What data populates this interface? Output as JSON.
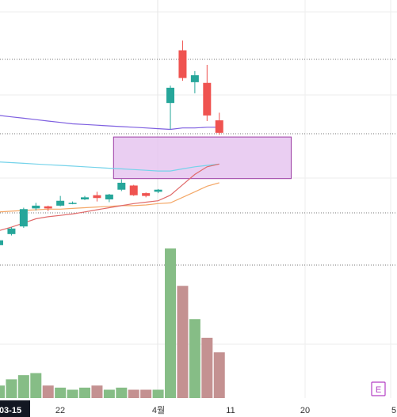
{
  "chart_data": {
    "type": "candlestick",
    "x_tick_labels": [
      "03-15",
      "22",
      "4월",
      "11",
      "20",
      "5"
    ],
    "highlighted_tick": "03-15",
    "candles": [
      {
        "open": 68.3,
        "high": 69.2,
        "low": 67.8,
        "close": 69.0
      },
      {
        "open": 69.9,
        "high": 70.9,
        "low": 69.7,
        "close": 70.7
      },
      {
        "open": 71.0,
        "high": 73.7,
        "low": 70.8,
        "close": 73.5
      },
      {
        "open": 73.6,
        "high": 74.4,
        "low": 73.3,
        "close": 74.0
      },
      {
        "open": 73.9,
        "high": 74.0,
        "low": 73.2,
        "close": 73.6
      },
      {
        "open": 74.0,
        "high": 75.4,
        "low": 73.9,
        "close": 74.7
      },
      {
        "open": 74.4,
        "high": 74.6,
        "low": 74.2,
        "close": 74.4
      },
      {
        "open": 74.9,
        "high": 75.4,
        "low": 74.8,
        "close": 75.2
      },
      {
        "open": 75.5,
        "high": 76.0,
        "low": 74.6,
        "close": 75.1
      },
      {
        "open": 74.9,
        "high": 75.7,
        "low": 74.5,
        "close": 75.6
      },
      {
        "open": 76.3,
        "high": 77.8,
        "low": 76.1,
        "close": 77.3
      },
      {
        "open": 76.9,
        "high": 77.0,
        "low": 75.4,
        "close": 75.5
      },
      {
        "open": 75.8,
        "high": 75.9,
        "low": 75.2,
        "close": 75.4
      },
      {
        "open": 76.0,
        "high": 76.4,
        "low": 75.8,
        "close": 76.3
      },
      {
        "open": 88.8,
        "high": 91.3,
        "low": 85.0,
        "close": 91.0
      },
      {
        "open": 96.4,
        "high": 97.8,
        "low": 92.0,
        "close": 92.4
      },
      {
        "open": 91.8,
        "high": 93.4,
        "low": 90.2,
        "close": 92.8
      },
      {
        "open": 91.7,
        "high": 94.3,
        "low": 86.2,
        "close": 87.0
      },
      {
        "open": 86.3,
        "high": 87.4,
        "low": 84.2,
        "close": 84.5
      }
    ],
    "volumes": [
      6,
      9,
      11,
      12,
      6,
      5,
      4,
      5,
      6,
      4,
      5,
      4,
      4,
      4,
      72,
      54,
      38,
      29,
      22
    ],
    "volume_max": 80,
    "moving_averages": [
      {
        "color": "#7e5fe0",
        "start_index": 0,
        "values": [
          87.0,
          86.8,
          86.6,
          86.4,
          86.2,
          86.0,
          85.8,
          85.7,
          85.6,
          85.5,
          85.4,
          85.3,
          85.2,
          85.1,
          85.0,
          85.2,
          85.2,
          85.3,
          85.3
        ]
      },
      {
        "color": "#75d3ea",
        "start_index": 0,
        "values": [
          80.3,
          80.2,
          80.1,
          80.0,
          79.9,
          79.8,
          79.7,
          79.6,
          79.5,
          79.4,
          79.3,
          79.2,
          79.1,
          79.0,
          79.0,
          79.3,
          79.6,
          79.8,
          80.0
        ]
      },
      {
        "color": "#f4a868",
        "start_index": 0,
        "values": [
          73.1,
          73.2,
          73.3,
          73.4,
          73.5,
          73.5,
          73.6,
          73.7,
          73.8,
          73.9,
          74.0,
          74.0,
          74.1,
          74.3,
          74.4,
          75.2,
          76.0,
          76.8,
          77.3
        ]
      },
      {
        "color": "#e06a6a",
        "start_index": 0,
        "values": [
          70.4,
          70.9,
          71.5,
          72.1,
          72.4,
          72.6,
          72.8,
          73.1,
          73.4,
          73.7,
          74.0,
          74.3,
          74.5,
          74.7,
          75.5,
          77.0,
          78.5,
          79.6,
          80.0
        ]
      }
    ],
    "zone": {
      "from_index": 10,
      "to_index": 22,
      "top": 83.9,
      "bottom": 77.9
    },
    "price_range": [
      66,
      100
    ],
    "grid": true,
    "colors": {
      "up": "#ef5350",
      "down": "#26a69a",
      "up_volume": "#c49191",
      "down_volume": "#86bd86",
      "zone_fill": "#e6c6f0",
      "zone_stroke": "#9b3aa3",
      "grid": "#eeeeee",
      "dotted": "#777777"
    }
  },
  "badge": {
    "label": "E",
    "color": "#b33fc4"
  }
}
